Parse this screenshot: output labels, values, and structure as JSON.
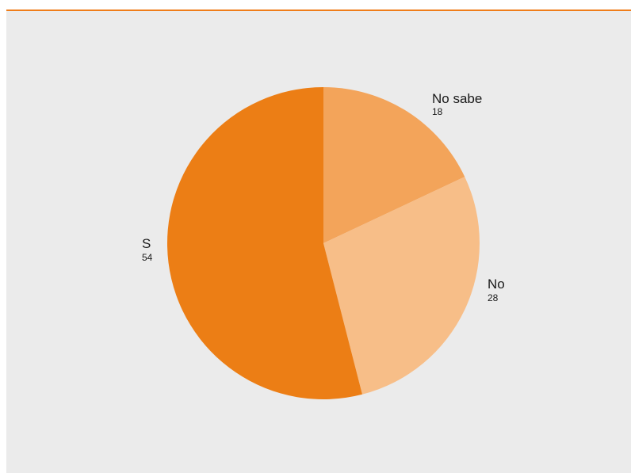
{
  "colors": {
    "accent_rule": "#ef7d1a",
    "panel_bg": "#ebebeb"
  },
  "chart_data": {
    "type": "pie",
    "title": "",
    "slices": [
      {
        "label": "No sabe",
        "value": 18,
        "value_text": "18",
        "color": "#f3a45a"
      },
      {
        "label": "No",
        "value": 28,
        "value_text": "28",
        "color": "#f7be88"
      },
      {
        "label": "S",
        "value": 54,
        "value_text": "54",
        "color": "#ec7e15"
      }
    ],
    "legend": "none",
    "start_angle_deg": 0,
    "direction": "clockwise"
  }
}
